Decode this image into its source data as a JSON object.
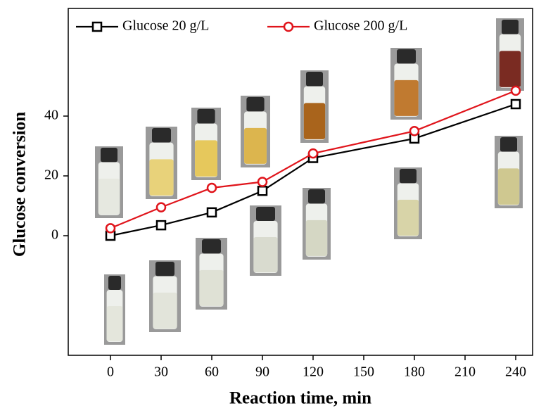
{
  "chart_data": {
    "type": "line",
    "x": [
      0,
      30,
      60,
      90,
      120,
      180,
      240
    ],
    "series": [
      {
        "name": "Glucose 20 g/L",
        "color": "#000000",
        "marker": "square",
        "values": [
          0,
          3.5,
          7.8,
          15,
          26,
          32.5,
          44
        ]
      },
      {
        "name": "Glucose 200 g/L",
        "color": "#e0141b",
        "marker": "circle",
        "values": [
          2.5,
          9.5,
          16,
          18,
          27.5,
          35,
          48.5
        ]
      }
    ],
    "xlabel": "Reaction time, min",
    "ylabel": "Glucose conversion",
    "xlim": [
      -25,
      250
    ],
    "xticks": [
      0,
      30,
      60,
      90,
      120,
      150,
      180,
      210,
      240
    ],
    "ylim": [
      -40,
      76
    ],
    "yticks": [
      0,
      20,
      40
    ],
    "grid": false,
    "legend": "top"
  }
}
